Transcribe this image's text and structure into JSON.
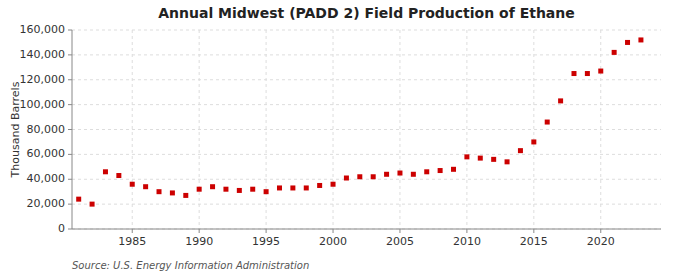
{
  "chart_data": {
    "type": "scatter",
    "title": "Annual Midwest (PADD 2) Field Production of Ethane",
    "y_label": "Thousand Barrels",
    "annotations": [
      "Source: U.S. Energy Information Administration"
    ],
    "x": [
      1981,
      1982,
      1983,
      1984,
      1985,
      1986,
      1987,
      1988,
      1989,
      1990,
      1991,
      1992,
      1993,
      1994,
      1995,
      1996,
      1997,
      1998,
      1999,
      2000,
      2001,
      2002,
      2003,
      2004,
      2005,
      2006,
      2007,
      2008,
      2009,
      2010,
      2011,
      2012,
      2013,
      2014,
      2015,
      2016,
      2017,
      2018,
      2019,
      2020,
      2021,
      2022,
      2023
    ],
    "values": [
      24000,
      20000,
      46000,
      43000,
      36000,
      34000,
      30000,
      29000,
      27000,
      32000,
      34000,
      32000,
      31000,
      32000,
      30000,
      33000,
      33000,
      33000,
      35000,
      36000,
      41000,
      42000,
      42000,
      44000,
      45000,
      44000,
      46000,
      47000,
      48000,
      58000,
      57000,
      56000,
      54000,
      63000,
      70000,
      86000,
      103000,
      125000,
      125000,
      127000,
      142000,
      150000,
      152000
    ],
    "color": "#cc0000",
    "marker": "square",
    "xlim": [
      1980.5,
      2024.5
    ],
    "ylim": [
      0,
      160000
    ],
    "xticks": [
      1985,
      1990,
      1995,
      2000,
      2005,
      2010,
      2015,
      2020
    ],
    "yticks": [
      0,
      {
        "value": 20000,
        "label": "20,000"
      },
      {
        "value": 40000,
        "label": "40,000"
      },
      {
        "value": 60000,
        "label": "60,000"
      },
      {
        "value": 80000,
        "label": "80,000"
      },
      {
        "value": 100000,
        "label": "100,000"
      },
      {
        "value": 120000,
        "label": "120,000"
      },
      {
        "value": 140000,
        "label": "140,000"
      },
      {
        "value": 160000,
        "label": "160,000"
      }
    ],
    "grid": true
  }
}
